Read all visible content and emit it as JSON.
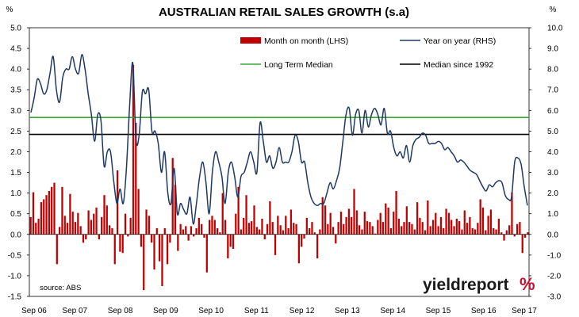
{
  "colors": {
    "bars": "#c00000",
    "yoy_line": "#1f3864",
    "long_term_median": "#3aaa35",
    "median_since_1992": "#000000",
    "logo_accent": "#c8102e"
  },
  "chart_data": {
    "type": "bar+line",
    "title": "AUSTRALIAN RETAIL SALES GROWTH (s.a)",
    "left_unit": "%",
    "right_unit": "%",
    "y_left": {
      "min": -1.5,
      "max": 5.0,
      "ticks": [
        "-1.5",
        "-1.0",
        "-0.5",
        "0.0",
        "0.5",
        "1.0",
        "1.5",
        "2.0",
        "2.5",
        "3.0",
        "3.5",
        "4.0",
        "4.5",
        "5.0"
      ]
    },
    "y_right": {
      "min": -3.0,
      "max": 10.0,
      "ticks": [
        "-3.0",
        "-2.0",
        "-1.0",
        "0.0",
        "1.0",
        "2.0",
        "3.0",
        "4.0",
        "5.0",
        "6.0",
        "7.0",
        "8.0",
        "9.0",
        "10.0"
      ]
    },
    "x_labels": [
      "Sep 06",
      "Sep 07",
      "Sep 08",
      "Sep 09",
      "Sep 10",
      "Sep 11",
      "Sep 12",
      "Sep 13",
      "Sep 14",
      "Sep 15",
      "Sep 16",
      "Sep 17"
    ],
    "grid": false,
    "legend_placement": "top-right",
    "legend": {
      "mom": "Month on month (LHS)",
      "yoy": "Year on year (RHS)",
      "ltm": "Long Term Median",
      "m92": "Median since 1992"
    },
    "long_term_median_lhs": 2.83,
    "median_since_1992_lhs": 2.42,
    "mom_lhs": [
      0.42,
      1.02,
      0.28,
      0.38,
      0.78,
      0.85,
      0.95,
      1.05,
      1.15,
      1.25,
      -0.72,
      0.18,
      1.15,
      0.45,
      0.28,
      0.98,
      0.55,
      0.3,
      0.52,
      0.2,
      -0.2,
      -0.12,
      0.58,
      0.35,
      0.5,
      0.65,
      -0.12,
      0.42,
      0.95,
      0.7,
      0.22,
      0.15,
      -0.72,
      1.55,
      -0.42,
      -0.45,
      0.5,
      -0.05,
      0.4,
      4.1,
      2.7,
      1.1,
      -0.3,
      -1.35,
      0.6,
      0.45,
      -0.2,
      -0.85,
      0.15,
      -0.65,
      -1.25,
      0.15,
      -0.72,
      -0.2,
      1.85,
      1.2,
      -0.4,
      0.25,
      0.12,
      0.2,
      -0.15,
      0.2,
      -0.05,
      0.15,
      0.4,
      0.25,
      -0.08,
      -0.92,
      0.35,
      0.45,
      0.35,
      0.15,
      0.05,
      1.0,
      0.35,
      -0.58,
      -0.3,
      -0.35,
      0.5,
      1.15,
      0.12,
      0.4,
      0.95,
      0.28,
      0.32,
      0.7,
      0.18,
      0.12,
      0.38,
      -0.12,
      0.25,
      0.8,
      0.3,
      -0.5,
      0.45,
      0.22,
      0.1,
      0.45,
      0.15,
      0.6,
      0.28,
      0.25,
      -0.7,
      -0.3,
      -0.1,
      0.4,
      0.15,
      0.3,
      0.05,
      -0.58,
      0.12,
      0.9,
      0.7,
      0.25,
      0.52,
      0.18,
      -0.22,
      0.3,
      0.55,
      0.25,
      0.42,
      0.62,
      0.42,
      1.1,
      0.58,
      0.22,
      0.12,
      0.55,
      0.32,
      0.3,
      0.2,
      0.02,
      0.35,
      0.52,
      0.3,
      0.75,
      0.65,
      0.15,
      0.55,
      1.05,
      0.38,
      0.2,
      0.3,
      0.68,
      0.3,
      0.25,
      0.12,
      0.78,
      0.4,
      0.3,
      0.1,
      0.82,
      0.2,
      0.35,
      0.52,
      0.2,
      0.42,
      0.15,
      0.62,
      0.52,
      0.35,
      0.2,
      0.38,
      0.32,
      0.12,
      0.58,
      0.28,
      0.42,
      0.15,
      0.12,
      0.28,
      0.85,
      0.65,
      0.1,
      0.45,
      0.6,
      0.15,
      0.12,
      0.38,
      0.05,
      -0.15,
      0.1,
      0.22,
      1.02,
      -0.05,
      0.25,
      0.3,
      -0.45,
      -0.08,
      0.05
    ],
    "yoy_rhs": [
      5.9,
      6.6,
      7.5,
      7.3,
      6.8,
      7.0,
      7.8,
      8.6,
      7.0,
      6.4,
      7.6,
      8.0,
      8.0,
      8.6,
      8.0,
      7.8,
      8.7,
      8.0,
      6.8,
      5.8,
      4.5,
      5.8,
      5.5,
      3.3,
      4.0,
      4.0,
      2.6,
      1.5,
      2.2,
      1.5,
      3.2,
      6.2,
      8.3,
      4.6,
      4.8,
      6.9,
      6.8,
      7.0,
      5.0,
      5.0,
      4.4,
      3.0,
      4.0,
      2.0,
      1.5,
      3.2,
      1.0,
      1.5,
      1.2,
      1.0,
      1.8,
      0.5,
      1.5,
      2.8,
      3.5,
      2.5,
      1.0,
      3.0,
      4.0,
      3.5,
      2.8,
      1.5,
      3.0,
      3.5,
      2.8,
      1.8,
      2.8,
      3.0,
      3.5,
      4.0,
      3.5,
      3.0,
      5.4,
      4.5,
      3.5,
      3.8,
      3.2,
      3.5,
      4.2,
      3.5,
      3.5,
      3.5,
      4.0,
      4.8,
      4.5,
      3.5,
      3.5,
      2.5,
      1.8,
      1.5,
      1.4,
      1.5,
      1.5,
      2.0,
      2.5,
      2.2,
      2.6,
      3.2,
      4.5,
      5.8,
      6.1,
      4.8,
      5.8,
      6.0,
      4.9,
      6.0,
      5.2,
      5.8,
      6.1,
      5.8,
      5.3,
      6.1,
      4.9,
      5.0,
      4.2,
      3.8,
      4.0,
      3.7,
      4.3,
      3.5,
      4.3,
      4.6,
      4.7,
      4.9,
      4.8,
      4.4,
      4.4,
      4.4,
      4.5,
      4.4,
      4.1,
      4.2,
      4.0,
      3.8,
      3.5,
      3.6,
      3.5,
      3.3,
      3.1,
      3.0,
      2.9,
      2.6,
      2.3,
      2.1,
      2.4,
      2.3,
      2.5,
      2.6,
      2.5,
      1.9,
      1.7,
      1.8,
      3.5,
      3.7,
      3.4,
      2.3,
      1.4
    ]
  },
  "source": "source: ABS",
  "logo": {
    "main": "yieldreport",
    "pct": "%"
  }
}
